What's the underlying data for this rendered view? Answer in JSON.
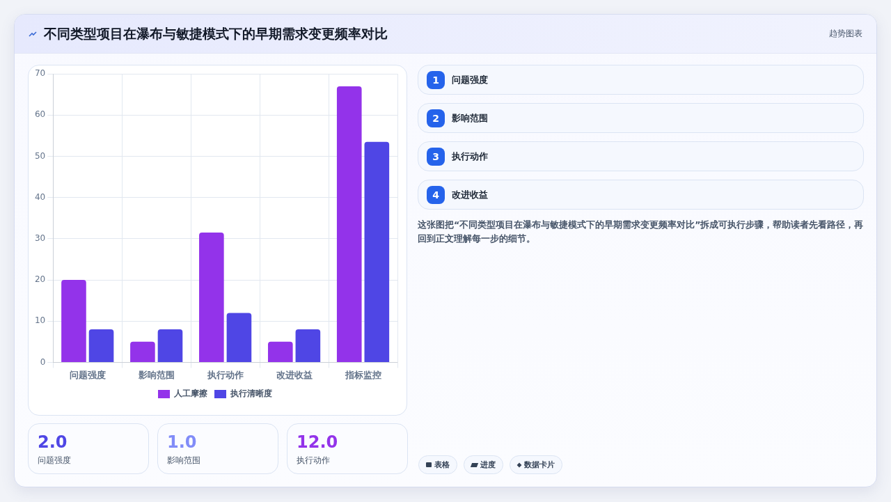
{
  "chart_data": [
    {
      "type": "bar",
      "title": "不同类型项目在瀑布与敏捷模式下的早期需求变更频率对比",
      "categories": [
        "问题强度",
        "影响范围",
        "执行动作",
        "改进收益",
        "指标监控"
      ],
      "series": [
        {
          "name": "人工摩擦",
          "color": "#9333ea",
          "values": [
            20,
            5,
            31.5,
            5,
            67
          ]
        },
        {
          "name": "执行清晰度",
          "color": "#4f46e5",
          "values": [
            8,
            8,
            12,
            8,
            53.5
          ]
        }
      ],
      "ylim": [
        0,
        70
      ],
      "yticks": [
        0,
        10,
        20,
        30,
        40,
        50,
        60,
        70
      ],
      "grid": true,
      "legend": "bottom"
    },
    {
      "type": "other",
      "categories": [
        "问题强度",
        "影响范围",
        "执行动作"
      ],
      "value_labels": [
        "2.0",
        "1.0",
        "12.0"
      ],
      "annotations": [
        "表格",
        "进度",
        "数据卡片"
      ]
    },
    {
      "type": "other",
      "subtitle": "趋势图表",
      "categories": [
        "问题强度",
        "影响范围",
        "执行动作",
        "改进收益"
      ],
      "values": [
        1,
        2,
        3,
        4
      ],
      "data_labels": true,
      "color": "#2563eb",
      "annotations": [
        "这张图把“不同类型项目在瀑布与敏捷模式下的早期需求变更频率对比”拆成可执行步骤，帮助读者先看路径，再回到正文理解每一步的细节。"
      ]
    }
  ]
}
